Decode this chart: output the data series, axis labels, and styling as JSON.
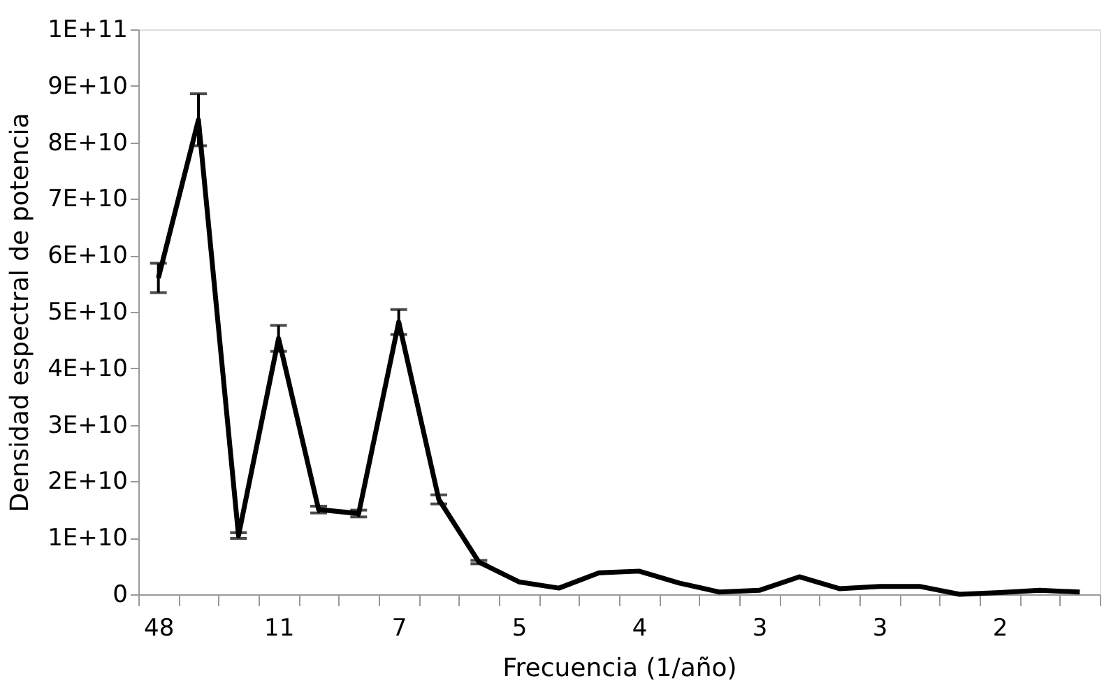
{
  "chart_data": {
    "type": "line",
    "xlabel": "Frecuencia (1/año)",
    "ylabel": "Densidad espectral de potencia",
    "categories": [
      "48",
      null,
      null,
      "11",
      null,
      null,
      "7",
      null,
      null,
      "5",
      null,
      null,
      "4",
      null,
      null,
      "3",
      null,
      null,
      "3",
      null,
      null,
      "2",
      null,
      null
    ],
    "series": [
      {
        "color": "#000000",
        "values": [
          56000000000.0,
          84000000000.0,
          10400000000.0,
          45300000000.0,
          15000000000.0,
          14300000000.0,
          48200000000.0,
          16800000000.0,
          5700000000.0,
          2200000000.0,
          1100000000.0,
          3800000000.0,
          4100000000.0,
          2000000000.0,
          400000000.0,
          700000000.0,
          3100000000.0,
          1000000000.0,
          1400000000.0,
          1400000000.0,
          0,
          300000000.0,
          700000000.0,
          400000000.0
        ],
        "errors": [
          2600000000.0,
          4600000000.0,
          500000000.0,
          2300000000.0,
          600000000.0,
          600000000.0,
          2200000000.0,
          800000000.0,
          300000000.0,
          null,
          null,
          null,
          null,
          null,
          null,
          null,
          null,
          null,
          null,
          null,
          null,
          null,
          null,
          null
        ]
      }
    ],
    "ylim": [
      0,
      100000000000.0
    ],
    "yticks": [
      0,
      {
        "value": 10000000000.0,
        "label": "1E+10"
      },
      {
        "value": 20000000000.0,
        "label": "2E+10"
      },
      {
        "value": 30000000000.0,
        "label": "3E+10"
      },
      {
        "value": 40000000000.0,
        "label": "4E+10"
      },
      {
        "value": 50000000000.0,
        "label": "5E+10"
      },
      {
        "value": 60000000000.0,
        "label": "6E+10"
      },
      {
        "value": 70000000000.0,
        "label": "7E+10"
      },
      {
        "value": 80000000000.0,
        "label": "8E+10"
      },
      {
        "value": 90000000000.0,
        "label": "9E+10"
      },
      {
        "value": 100000000000.0,
        "label": "1E+11"
      }
    ],
    "grid": false,
    "marker": "none",
    "line_style": "solid"
  }
}
